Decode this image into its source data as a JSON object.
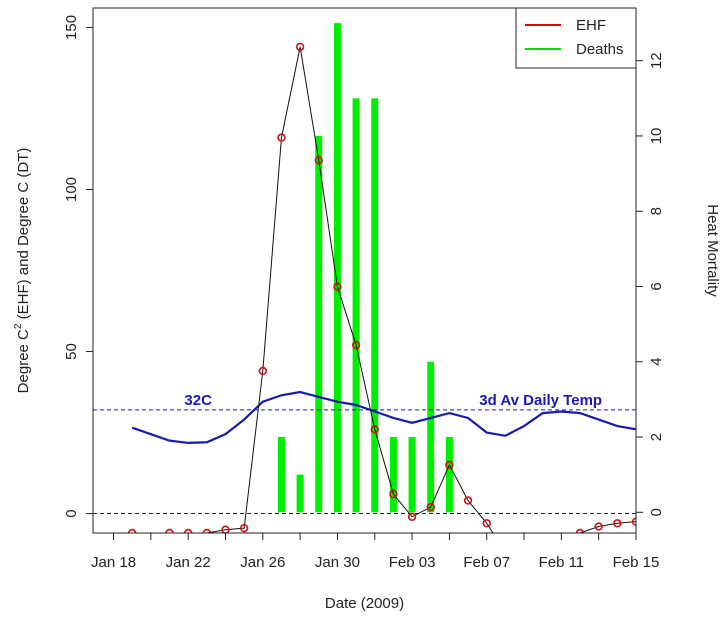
{
  "chart_data": {
    "type": "line",
    "xlabel": "Date (2009)",
    "ylabel_left_prefix": "Degree C",
    "ylabel_left_sup": "2",
    "ylabel_left_suffix": " (EHF) and Degree C (DT)",
    "ylabel_right": "Heat Mortality",
    "x_tick_labels": [
      "Jan 18",
      "Jan 22",
      "Jan 26",
      "Jan 30",
      "Feb 03",
      "Feb 07",
      "Feb 11",
      "Feb 15"
    ],
    "x_tick_days": [
      18,
      22,
      26,
      30,
      34,
      38,
      42,
      46
    ],
    "x_minor_days": [
      20,
      24,
      28,
      32,
      36,
      40,
      44
    ],
    "x_axis_note": "x values are day numbers counted from Jan 1, 2009 (Feb 01 = 32)",
    "xlim": [
      16.9,
      46
    ],
    "ylim_left": [
      -6,
      156
    ],
    "yticks_left": [
      0,
      50,
      100,
      150
    ],
    "ylim_right": [
      -0.55,
      13.4
    ],
    "yticks_right": [
      0,
      2,
      4,
      6,
      8,
      10,
      12
    ],
    "grid": false,
    "reference_lines": [
      {
        "y": 0,
        "axis": "left",
        "color": "#222222"
      },
      {
        "y": 32,
        "axis": "left",
        "color": "#1a1ab0",
        "label": "32C"
      }
    ],
    "annotations": [
      {
        "text": "32C",
        "x": 21.8,
        "y": 33.5,
        "color": "#1a1ab0"
      },
      {
        "text": "3d Av Daily Temp",
        "x": 37.6,
        "y": 33.5,
        "color": "#1a1ab0"
      }
    ],
    "legend": {
      "position": "top-right",
      "entries": [
        {
          "name": "EHF",
          "color": "#dd0000"
        },
        {
          "name": "Deaths",
          "color": "#00dd00"
        }
      ]
    },
    "series": [
      {
        "name": "EHF",
        "axis": "left",
        "kind": "line-points",
        "line_color": "#111111",
        "marker_color": "#cc1111",
        "x": [
          18,
          19,
          20,
          21,
          22,
          23,
          24,
          25,
          26,
          27,
          28,
          29,
          30,
          31,
          32,
          33,
          34,
          35,
          36,
          37,
          38,
          39,
          40,
          41,
          42,
          43,
          44,
          45,
          46
        ],
        "y": [
          -10,
          -6,
          -9,
          -6,
          -6,
          -6,
          -5,
          -4.5,
          44,
          116,
          144,
          109,
          70,
          52,
          26,
          6,
          -1,
          2,
          15,
          4,
          -3,
          -12,
          -15,
          -13,
          -9,
          -6,
          -4,
          -3,
          -2.5
        ]
      },
      {
        "name": "3d Av Daily Temp",
        "axis": "left",
        "kind": "line",
        "color": "#1a1ab0",
        "x": [
          19,
          20,
          21,
          22,
          23,
          24,
          25,
          26,
          27,
          28,
          29,
          30,
          31,
          32,
          33,
          34,
          35,
          36,
          37,
          38,
          39,
          40,
          41,
          42,
          43,
          44,
          45,
          46
        ],
        "y": [
          26.5,
          24.5,
          22.5,
          21.8,
          22,
          24.5,
          29,
          34.5,
          36.5,
          37.5,
          36,
          34.5,
          33.5,
          31.5,
          29.5,
          28,
          29.5,
          31,
          29.5,
          25,
          24,
          27,
          31,
          31.5,
          31,
          29,
          27,
          26
        ]
      },
      {
        "name": "Deaths",
        "axis": "right",
        "kind": "bar",
        "color": "#00ee00",
        "x": [
          27,
          28,
          29,
          30,
          31,
          32,
          33,
          34,
          35,
          36
        ],
        "y": [
          2,
          1,
          10,
          13,
          11,
          11,
          2,
          2,
          4,
          2
        ]
      }
    ]
  }
}
